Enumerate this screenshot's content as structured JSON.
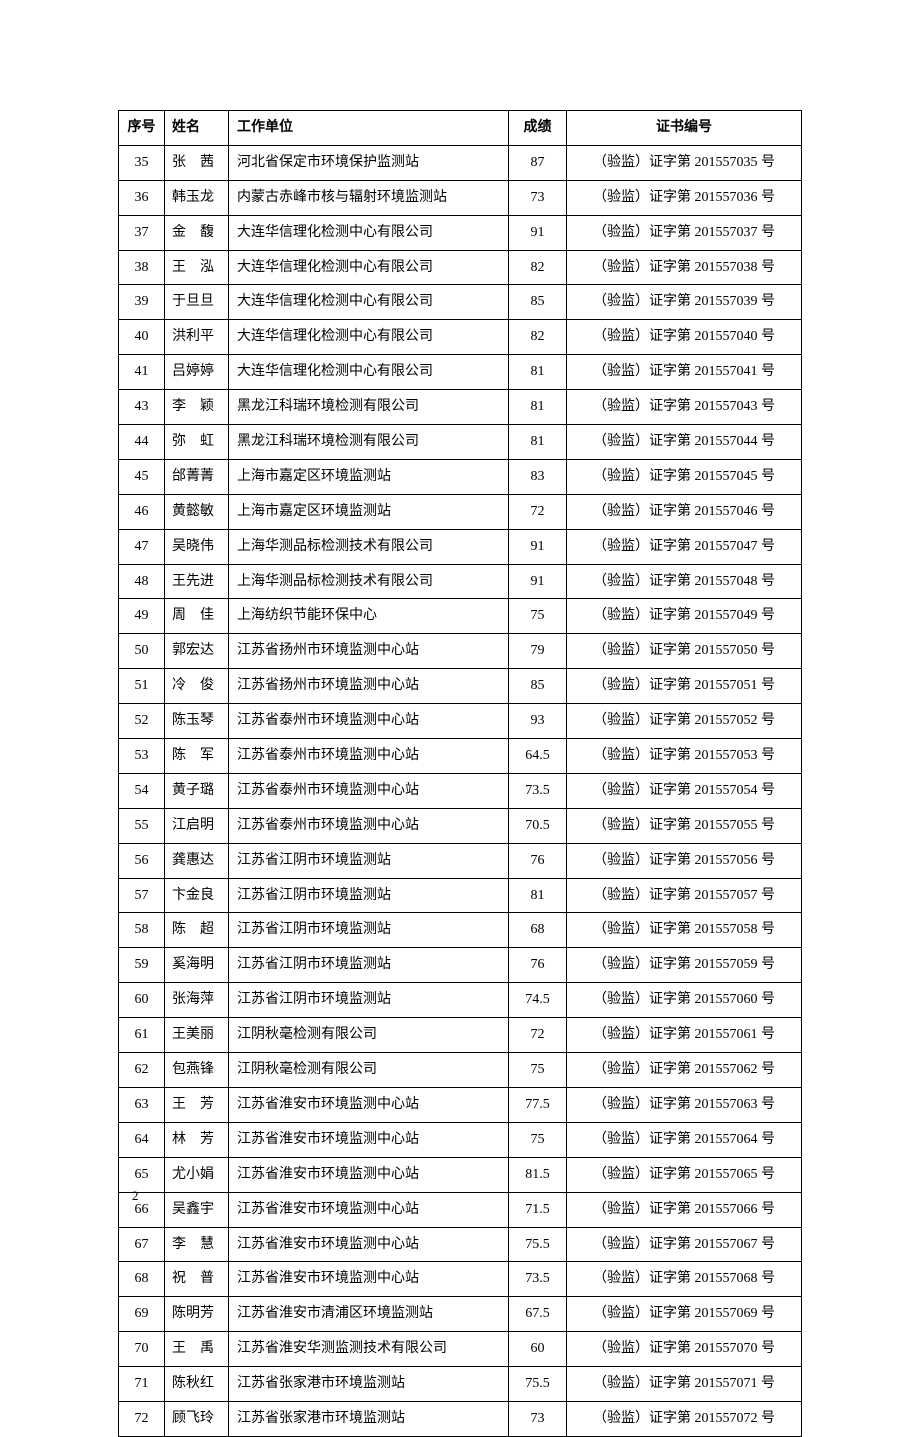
{
  "headers": {
    "seq": "序号",
    "name": "姓名",
    "unit": "工作单位",
    "score": "成绩",
    "cert": "证书编号"
  },
  "rows": [
    {
      "seq": "35",
      "name": "张　茜",
      "unit": "河北省保定市环境保护监测站",
      "score": "87",
      "cert": "（验监）证字第 201557035 号"
    },
    {
      "seq": "36",
      "name": "韩玉龙",
      "unit": "内蒙古赤峰市核与辐射环境监测站",
      "score": "73",
      "cert": "（验监）证字第 201557036 号"
    },
    {
      "seq": "37",
      "name": "金　馥",
      "unit": "大连华信理化检测中心有限公司",
      "score": "91",
      "cert": "（验监）证字第 201557037 号"
    },
    {
      "seq": "38",
      "name": "王　泓",
      "unit": "大连华信理化检测中心有限公司",
      "score": "82",
      "cert": "（验监）证字第 201557038 号"
    },
    {
      "seq": "39",
      "name": "于旦旦",
      "unit": "大连华信理化检测中心有限公司",
      "score": "85",
      "cert": "（验监）证字第 201557039 号"
    },
    {
      "seq": "40",
      "name": "洪利平",
      "unit": "大连华信理化检测中心有限公司",
      "score": "82",
      "cert": "（验监）证字第 201557040 号"
    },
    {
      "seq": "41",
      "name": "吕婷婷",
      "unit": "大连华信理化检测中心有限公司",
      "score": "81",
      "cert": "（验监）证字第 201557041 号"
    },
    {
      "seq": "43",
      "name": "李　颖",
      "unit": "黑龙江科瑞环境检测有限公司",
      "score": "81",
      "cert": "（验监）证字第 201557043 号"
    },
    {
      "seq": "44",
      "name": "弥　虹",
      "unit": "黑龙江科瑞环境检测有限公司",
      "score": "81",
      "cert": "（验监）证字第 201557044 号"
    },
    {
      "seq": "45",
      "name": "邰菁菁",
      "unit": "上海市嘉定区环境监测站",
      "score": "83",
      "cert": "（验监）证字第 201557045 号"
    },
    {
      "seq": "46",
      "name": "黄懿敏",
      "unit": "上海市嘉定区环境监测站",
      "score": "72",
      "cert": "（验监）证字第 201557046 号"
    },
    {
      "seq": "47",
      "name": "吴晓伟",
      "unit": "上海华测品标检测技术有限公司",
      "score": "91",
      "cert": "（验监）证字第 201557047 号"
    },
    {
      "seq": "48",
      "name": "王先进",
      "unit": "上海华测品标检测技术有限公司",
      "score": "91",
      "cert": "（验监）证字第 201557048 号"
    },
    {
      "seq": "49",
      "name": "周　佳",
      "unit": "上海纺织节能环保中心",
      "score": "75",
      "cert": "（验监）证字第 201557049 号"
    },
    {
      "seq": "50",
      "name": "郭宏达",
      "unit": "江苏省扬州市环境监测中心站",
      "score": "79",
      "cert": "（验监）证字第 201557050 号"
    },
    {
      "seq": "51",
      "name": "冷　俊",
      "unit": "江苏省扬州市环境监测中心站",
      "score": "85",
      "cert": "（验监）证字第 201557051 号"
    },
    {
      "seq": "52",
      "name": "陈玉琴",
      "unit": "江苏省泰州市环境监测中心站",
      "score": "93",
      "cert": "（验监）证字第 201557052 号"
    },
    {
      "seq": "53",
      "name": "陈　军",
      "unit": "江苏省泰州市环境监测中心站",
      "score": "64.5",
      "cert": "（验监）证字第 201557053 号"
    },
    {
      "seq": "54",
      "name": "黄子璐",
      "unit": "江苏省泰州市环境监测中心站",
      "score": "73.5",
      "cert": "（验监）证字第 201557054 号"
    },
    {
      "seq": "55",
      "name": "江启明",
      "unit": "江苏省泰州市环境监测中心站",
      "score": "70.5",
      "cert": "（验监）证字第 201557055 号"
    },
    {
      "seq": "56",
      "name": "龚惠达",
      "unit": "江苏省江阴市环境监测站",
      "score": "76",
      "cert": "（验监）证字第 201557056 号"
    },
    {
      "seq": "57",
      "name": "卞金良",
      "unit": "江苏省江阴市环境监测站",
      "score": "81",
      "cert": "（验监）证字第 201557057 号"
    },
    {
      "seq": "58",
      "name": "陈　超",
      "unit": "江苏省江阴市环境监测站",
      "score": "68",
      "cert": "（验监）证字第 201557058 号"
    },
    {
      "seq": "59",
      "name": "奚海明",
      "unit": "江苏省江阴市环境监测站",
      "score": "76",
      "cert": "（验监）证字第 201557059 号"
    },
    {
      "seq": "60",
      "name": "张海萍",
      "unit": "江苏省江阴市环境监测站",
      "score": "74.5",
      "cert": "（验监）证字第 201557060 号"
    },
    {
      "seq": "61",
      "name": "王美丽",
      "unit": "江阴秋毫检测有限公司",
      "score": "72",
      "cert": "（验监）证字第 201557061 号"
    },
    {
      "seq": "62",
      "name": "包燕锋",
      "unit": "江阴秋毫检测有限公司",
      "score": "75",
      "cert": "（验监）证字第 201557062 号"
    },
    {
      "seq": "63",
      "name": "王　芳",
      "unit": "江苏省淮安市环境监测中心站",
      "score": "77.5",
      "cert": "（验监）证字第 201557063 号"
    },
    {
      "seq": "64",
      "name": "林　芳",
      "unit": "江苏省淮安市环境监测中心站",
      "score": "75",
      "cert": "（验监）证字第 201557064 号"
    },
    {
      "seq": "65",
      "name": "尤小娟",
      "unit": "江苏省淮安市环境监测中心站",
      "score": "81.5",
      "cert": "（验监）证字第 201557065 号"
    },
    {
      "seq": "66",
      "name": "吴鑫宇",
      "unit": "江苏省淮安市环境监测中心站",
      "score": "71.5",
      "cert": "（验监）证字第 201557066 号"
    },
    {
      "seq": "67",
      "name": "李　慧",
      "unit": "江苏省淮安市环境监测中心站",
      "score": "75.5",
      "cert": "（验监）证字第 201557067 号"
    },
    {
      "seq": "68",
      "name": "祝　普",
      "unit": "江苏省淮安市环境监测中心站",
      "score": "73.5",
      "cert": "（验监）证字第 201557068 号"
    },
    {
      "seq": "69",
      "name": "陈明芳",
      "unit": "江苏省淮安市清浦区环境监测站",
      "score": "67.5",
      "cert": "（验监）证字第 201557069 号"
    },
    {
      "seq": "70",
      "name": "王　禹",
      "unit": "江苏省淮安华测监测技术有限公司",
      "score": "60",
      "cert": "（验监）证字第 201557070 号"
    },
    {
      "seq": "71",
      "name": "陈秋红",
      "unit": "江苏省张家港市环境监测站",
      "score": "75.5",
      "cert": "（验监）证字第 201557071 号"
    },
    {
      "seq": "72",
      "name": "顾飞玲",
      "unit": "江苏省张家港市环境监测站",
      "score": "73",
      "cert": "（验监）证字第 201557072 号"
    }
  ],
  "page_number": "2"
}
